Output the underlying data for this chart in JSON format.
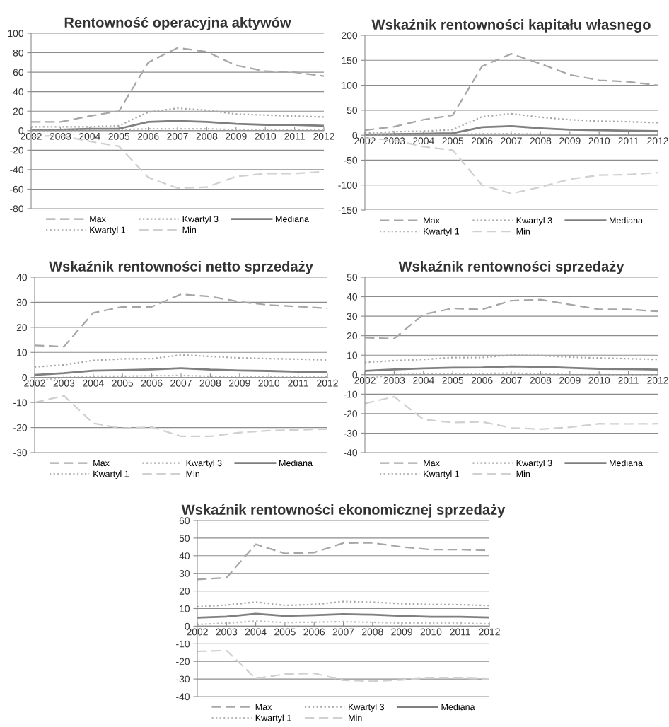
{
  "chart_data": [
    {
      "type": "line",
      "title": "Rentowność operacyjna aktywów",
      "categories": [
        "2002",
        "2003",
        "2004",
        "2005",
        "2006",
        "2007",
        "2008",
        "2009",
        "2010",
        "2011",
        "2012"
      ],
      "ylim": [
        -80,
        100
      ],
      "yticks": [
        -80,
        -60,
        -40,
        -20,
        0,
        20,
        40,
        60,
        80,
        100
      ],
      "grid": "y",
      "legend": "bottom",
      "series": [
        {
          "name": "Max",
          "color": "#a6a6a6",
          "line_style": "dashed",
          "values": [
            9,
            9,
            15,
            20,
            70,
            85,
            81,
            67,
            61,
            60,
            56
          ]
        },
        {
          "name": "Kwartyl 3",
          "color": "#a6a6a6",
          "line_style": "dotted",
          "values": [
            4,
            4,
            4,
            5,
            19,
            23,
            21,
            17,
            16,
            15,
            14
          ]
        },
        {
          "name": "Mediana",
          "color": "#7f7f7f",
          "line_style": "solid",
          "values": [
            1,
            1,
            2,
            2,
            9,
            10,
            9,
            7,
            6,
            6,
            5
          ]
        },
        {
          "name": "Kwartyl 1",
          "color": "#b8b8b8",
          "line_style": "dotted",
          "values": [
            0,
            0,
            0.5,
            1,
            2,
            2,
            2,
            1,
            1,
            1,
            0.5
          ]
        },
        {
          "name": "Min",
          "color": "#d0d0d0",
          "line_style": "dashed",
          "values": [
            -6,
            -5,
            -11,
            -16,
            -48,
            -59,
            -58,
            -47,
            -44,
            -44,
            -42
          ]
        }
      ]
    },
    {
      "type": "line",
      "title": "Wskaźnik rentowności kapitału własnego",
      "categories": [
        "2002",
        "2003",
        "2004",
        "2005",
        "2006",
        "2007",
        "2008",
        "2009",
        "2010",
        "2011",
        "2012"
      ],
      "ylim": [
        -150,
        200
      ],
      "yticks": [
        -150,
        -100,
        -50,
        0,
        50,
        100,
        150,
        200
      ],
      "grid": "y",
      "legend": "bottom",
      "series": [
        {
          "name": "Max",
          "color": "#a6a6a6",
          "line_style": "dashed",
          "values": [
            10,
            17,
            31,
            40,
            138,
            163,
            143,
            121,
            110,
            107,
            100
          ]
        },
        {
          "name": "Kwartyl 3",
          "color": "#a6a6a6",
          "line_style": "dotted",
          "values": [
            4,
            7,
            8,
            11,
            37,
            43,
            36,
            31,
            28,
            27,
            25
          ]
        },
        {
          "name": "Mediana",
          "color": "#7f7f7f",
          "line_style": "solid",
          "values": [
            1,
            2,
            3,
            4,
            16,
            18,
            14,
            11,
            10,
            9,
            8
          ]
        },
        {
          "name": "Kwartyl 1",
          "color": "#b8b8b8",
          "line_style": "dotted",
          "values": [
            0,
            1,
            1,
            1,
            3,
            3,
            2,
            1,
            1,
            1,
            1
          ]
        },
        {
          "name": "Min",
          "color": "#d0d0d0",
          "line_style": "dashed",
          "values": [
            -6,
            -10,
            -23,
            -30,
            -100,
            -117,
            -104,
            -88,
            -80,
            -79,
            -75
          ]
        }
      ]
    },
    {
      "type": "line",
      "title": "Wskaźnik rentowności netto sprzedaży",
      "categories": [
        "2002",
        "2003",
        "2004",
        "2005",
        "2006",
        "2007",
        "2008",
        "2009",
        "2010",
        "2011",
        "2012"
      ],
      "ylim": [
        -30,
        40
      ],
      "yticks": [
        -30,
        -20,
        -10,
        0,
        10,
        20,
        30,
        40
      ],
      "grid": "y",
      "legend": "bottom",
      "series": [
        {
          "name": "Max",
          "color": "#a6a6a6",
          "line_style": "dashed",
          "values": [
            12.8,
            12.3,
            25.8,
            28.2,
            28.2,
            33.2,
            32.3,
            30.2,
            28.9,
            28.3,
            27.6
          ]
        },
        {
          "name": "Kwartyl 3",
          "color": "#a6a6a6",
          "line_style": "dotted",
          "values": [
            4.2,
            5,
            6.8,
            7.4,
            7.5,
            9,
            8.4,
            7.8,
            7.5,
            7.3,
            7
          ]
        },
        {
          "name": "Mediana",
          "color": "#7f7f7f",
          "line_style": "solid",
          "values": [
            1,
            1.7,
            2.7,
            2.9,
            3.2,
            3.7,
            3.1,
            2.8,
            2.6,
            2.3,
            2.2
          ]
        },
        {
          "name": "Kwartyl 1",
          "color": "#b8b8b8",
          "line_style": "dotted",
          "values": [
            -1.5,
            0,
            0.5,
            0.5,
            0.7,
            0.8,
            0.5,
            0.4,
            0.4,
            0.3,
            0.2
          ]
        },
        {
          "name": "Min",
          "color": "#d0d0d0",
          "line_style": "dashed",
          "values": [
            -10,
            -7.3,
            -18.3,
            -20.3,
            -19.8,
            -23.5,
            -23.5,
            -22,
            -21.2,
            -20.9,
            -20.6
          ]
        }
      ]
    },
    {
      "type": "line",
      "title": "Wskaźnik rentowności sprzedaży",
      "categories": [
        "2002",
        "2003",
        "2004",
        "2005",
        "2006",
        "2007",
        "2008",
        "2009",
        "2010",
        "2011",
        "2012"
      ],
      "ylim": [
        -40,
        50
      ],
      "yticks": [
        -40,
        -30,
        -20,
        -10,
        0,
        10,
        20,
        30,
        40,
        50
      ],
      "grid": "y",
      "legend": "bottom",
      "series": [
        {
          "name": "Max",
          "color": "#a6a6a6",
          "line_style": "dashed",
          "values": [
            19,
            18.5,
            31,
            34,
            33.5,
            38,
            38.5,
            36,
            33.5,
            33.5,
            32.5
          ]
        },
        {
          "name": "Kwartyl 3",
          "color": "#a6a6a6",
          "line_style": "dotted",
          "values": [
            6.3,
            7.2,
            7.8,
            8.8,
            8.8,
            10,
            9.8,
            9,
            8.5,
            8.2,
            7.8
          ]
        },
        {
          "name": "Mediana",
          "color": "#7f7f7f",
          "line_style": "solid",
          "values": [
            2,
            2.7,
            3.2,
            3.6,
            3.7,
            4.2,
            4,
            3.5,
            3,
            2.9,
            2.6
          ]
        },
        {
          "name": "Kwartyl 1",
          "color": "#b8b8b8",
          "line_style": "dotted",
          "values": [
            -2,
            0,
            0.4,
            0.5,
            0.6,
            0.8,
            0.5,
            0,
            0,
            -0.2,
            -0.5
          ]
        },
        {
          "name": "Min",
          "color": "#d0d0d0",
          "line_style": "dashed",
          "values": [
            -14.8,
            -11.3,
            -23,
            -24.6,
            -24.2,
            -27.3,
            -28,
            -27,
            -25.2,
            -25.3,
            -25.2
          ]
        }
      ]
    },
    {
      "type": "line",
      "title": "Wskaźnik rentowności ekonomicznej sprzedaży",
      "categories": [
        "2002",
        "2003",
        "2004",
        "2005",
        "2006",
        "2007",
        "2008",
        "2009",
        "2010",
        "2011",
        "2012"
      ],
      "ylim": [
        -40,
        60
      ],
      "yticks": [
        -40,
        -30,
        -20,
        -10,
        0,
        10,
        20,
        30,
        40,
        50,
        60
      ],
      "grid": "y",
      "legend": "bottom",
      "series": [
        {
          "name": "Max",
          "color": "#a6a6a6",
          "line_style": "dashed",
          "values": [
            26.5,
            27.5,
            46.5,
            41.3,
            41.8,
            47.2,
            47.3,
            45,
            43.5,
            43.5,
            43
          ]
        },
        {
          "name": "Kwartyl 3",
          "color": "#a6a6a6",
          "line_style": "dotted",
          "values": [
            11,
            12,
            13.7,
            11.8,
            12.3,
            14,
            13.6,
            12.8,
            12.3,
            12.2,
            11.7
          ]
        },
        {
          "name": "Mediana",
          "color": "#7f7f7f",
          "line_style": "solid",
          "values": [
            4.8,
            5.4,
            7,
            5.8,
            6.2,
            6.8,
            6.5,
            5.8,
            5.3,
            5.3,
            4.9
          ]
        },
        {
          "name": "Kwartyl 1",
          "color": "#b8b8b8",
          "line_style": "dotted",
          "values": [
            1,
            1.7,
            2.9,
            2.1,
            2.3,
            2.6,
            2.2,
            1.7,
            1.7,
            1.7,
            1.3
          ]
        },
        {
          "name": "Min",
          "color": "#d0d0d0",
          "line_style": "dashed",
          "values": [
            -14.3,
            -13.8,
            -29.8,
            -27.2,
            -26.8,
            -30.7,
            -31.3,
            -30.5,
            -29.3,
            -29.5,
            -30
          ]
        }
      ]
    }
  ]
}
